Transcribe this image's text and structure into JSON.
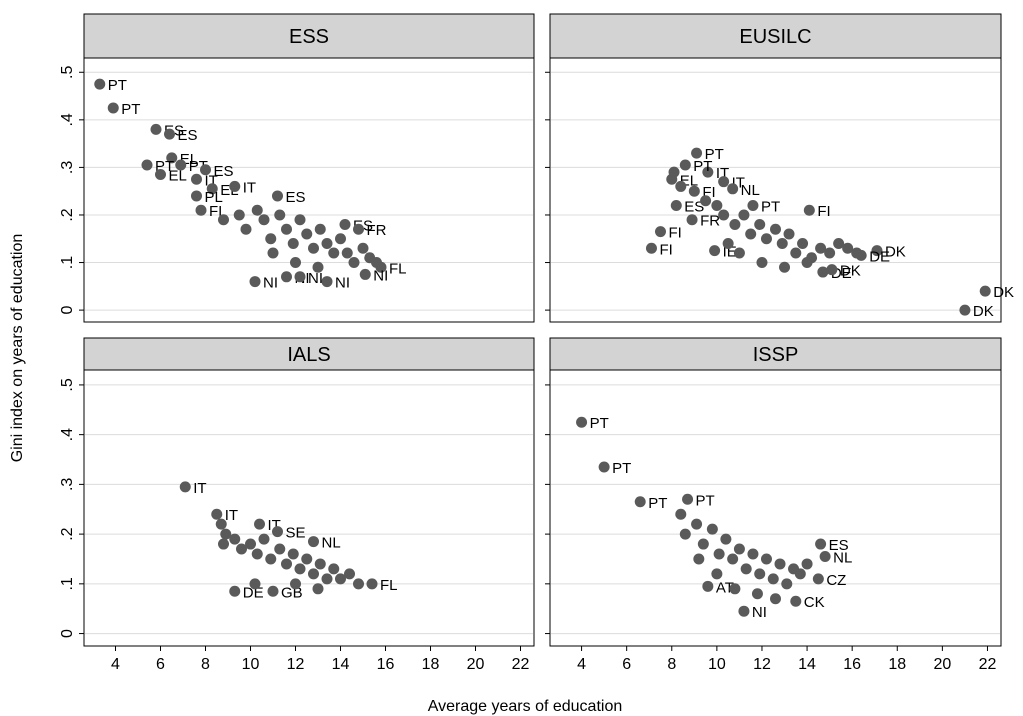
{
  "figure": {
    "xlabel": "Average years of education",
    "ylabel": "Gini index on years of education",
    "point_color": "#5a5a5a",
    "header_color": "#d3d3d3",
    "grid_color": "#dcdcdc"
  },
  "chart_data": [
    {
      "type": "scatter",
      "title": "ESS",
      "xlim": [
        2.6,
        22.6
      ],
      "ylim": [
        -0.025,
        0.53
      ],
      "xticks": [
        4,
        6,
        8,
        10,
        12,
        14,
        16,
        18,
        20,
        22
      ],
      "yticks": [
        0,
        0.1,
        0.2,
        0.3,
        0.4,
        0.5
      ],
      "ytick_labels": [
        "0",
        ".1",
        ".2",
        ".3",
        ".4",
        ".5"
      ],
      "grid": "horizontal",
      "points": [
        {
          "x": 3.3,
          "y": 0.475,
          "label": "PT"
        },
        {
          "x": 3.9,
          "y": 0.425,
          "label": "PT"
        },
        {
          "x": 5.8,
          "y": 0.38,
          "label": "ES"
        },
        {
          "x": 6.4,
          "y": 0.37,
          "label": "ES"
        },
        {
          "x": 6.5,
          "y": 0.32,
          "label": "EL"
        },
        {
          "x": 5.4,
          "y": 0.305,
          "label": "PT"
        },
        {
          "x": 6.9,
          "y": 0.305,
          "label": "PT"
        },
        {
          "x": 6.0,
          "y": 0.285,
          "label": "EL"
        },
        {
          "x": 8.0,
          "y": 0.295,
          "label": "ES"
        },
        {
          "x": 7.6,
          "y": 0.275,
          "label": "IT"
        },
        {
          "x": 8.3,
          "y": 0.255,
          "label": "EL"
        },
        {
          "x": 9.3,
          "y": 0.26,
          "label": "IT"
        },
        {
          "x": 7.6,
          "y": 0.24,
          "label": "PL"
        },
        {
          "x": 11.2,
          "y": 0.24,
          "label": "ES"
        },
        {
          "x": 7.8,
          "y": 0.21,
          "label": "FI"
        },
        {
          "x": 10.2,
          "y": 0.06,
          "label": "NI"
        },
        {
          "x": 11.6,
          "y": 0.07,
          "label": "NI"
        },
        {
          "x": 12.2,
          "y": 0.07,
          "label": "NI"
        },
        {
          "x": 13.4,
          "y": 0.06,
          "label": "NI"
        },
        {
          "x": 14.2,
          "y": 0.18,
          "label": "ES"
        },
        {
          "x": 14.8,
          "y": 0.17,
          "label": "FR"
        },
        {
          "x": 15.8,
          "y": 0.09,
          "label": "FL"
        },
        {
          "x": 15.1,
          "y": 0.075,
          "label": "NI"
        },
        {
          "x": 8.8,
          "y": 0.19
        },
        {
          "x": 9.5,
          "y": 0.2
        },
        {
          "x": 9.8,
          "y": 0.17
        },
        {
          "x": 10.3,
          "y": 0.21
        },
        {
          "x": 10.6,
          "y": 0.19
        },
        {
          "x": 10.9,
          "y": 0.15
        },
        {
          "x": 11.3,
          "y": 0.2
        },
        {
          "x": 11.6,
          "y": 0.17
        },
        {
          "x": 11.9,
          "y": 0.14
        },
        {
          "x": 12.2,
          "y": 0.19
        },
        {
          "x": 12.5,
          "y": 0.16
        },
        {
          "x": 12.8,
          "y": 0.13
        },
        {
          "x": 13.1,
          "y": 0.17
        },
        {
          "x": 13.4,
          "y": 0.14
        },
        {
          "x": 13.7,
          "y": 0.12
        },
        {
          "x": 14.0,
          "y": 0.15
        },
        {
          "x": 14.3,
          "y": 0.12
        },
        {
          "x": 14.6,
          "y": 0.1
        },
        {
          "x": 15.0,
          "y": 0.13
        },
        {
          "x": 15.3,
          "y": 0.11
        },
        {
          "x": 15.6,
          "y": 0.1
        },
        {
          "x": 11.0,
          "y": 0.12
        },
        {
          "x": 12.0,
          "y": 0.1
        },
        {
          "x": 13.0,
          "y": 0.09
        }
      ]
    },
    {
      "type": "scatter",
      "title": "EUSILC",
      "xlim": [
        2.6,
        22.6
      ],
      "ylim": [
        -0.025,
        0.53
      ],
      "xticks": [
        4,
        6,
        8,
        10,
        12,
        14,
        16,
        18,
        20,
        22
      ],
      "yticks": [
        0,
        0.1,
        0.2,
        0.3,
        0.4,
        0.5
      ],
      "ytick_labels": [
        "0",
        ".1",
        ".2",
        ".3",
        ".4",
        ".5"
      ],
      "grid": "horizontal",
      "points": [
        {
          "x": 9.1,
          "y": 0.33,
          "label": "PT"
        },
        {
          "x": 9.6,
          "y": 0.29,
          "label": "IT"
        },
        {
          "x": 8.6,
          "y": 0.305,
          "label": "PT"
        },
        {
          "x": 10.3,
          "y": 0.27,
          "label": "IT"
        },
        {
          "x": 8.0,
          "y": 0.275,
          "label": "EL"
        },
        {
          "x": 10.7,
          "y": 0.255,
          "label": "NL"
        },
        {
          "x": 9.0,
          "y": 0.25,
          "label": "FI"
        },
        {
          "x": 11.6,
          "y": 0.22,
          "label": "PT"
        },
        {
          "x": 8.2,
          "y": 0.22,
          "label": "ES"
        },
        {
          "x": 8.9,
          "y": 0.19,
          "label": "FR"
        },
        {
          "x": 14.1,
          "y": 0.21,
          "label": "FI"
        },
        {
          "x": 7.5,
          "y": 0.165,
          "label": "FI"
        },
        {
          "x": 7.1,
          "y": 0.13,
          "label": "FI"
        },
        {
          "x": 9.9,
          "y": 0.125,
          "label": "IE"
        },
        {
          "x": 17.1,
          "y": 0.125,
          "label": "DK"
        },
        {
          "x": 16.4,
          "y": 0.115,
          "label": "DE"
        },
        {
          "x": 14.7,
          "y": 0.08,
          "label": "DE"
        },
        {
          "x": 15.1,
          "y": 0.085,
          "label": "DK"
        },
        {
          "x": 21.9,
          "y": 0.04,
          "label": "DK"
        },
        {
          "x": 21.0,
          "y": 0.0,
          "label": "DK"
        },
        {
          "x": 8.1,
          "y": 0.29
        },
        {
          "x": 8.4,
          "y": 0.26
        },
        {
          "x": 9.5,
          "y": 0.23
        },
        {
          "x": 10.0,
          "y": 0.22
        },
        {
          "x": 10.3,
          "y": 0.2
        },
        {
          "x": 10.8,
          "y": 0.18
        },
        {
          "x": 11.2,
          "y": 0.2
        },
        {
          "x": 11.5,
          "y": 0.16
        },
        {
          "x": 11.9,
          "y": 0.18
        },
        {
          "x": 12.2,
          "y": 0.15
        },
        {
          "x": 12.6,
          "y": 0.17
        },
        {
          "x": 12.9,
          "y": 0.14
        },
        {
          "x": 13.2,
          "y": 0.16
        },
        {
          "x": 13.5,
          "y": 0.12
        },
        {
          "x": 13.8,
          "y": 0.14
        },
        {
          "x": 14.2,
          "y": 0.11
        },
        {
          "x": 14.6,
          "y": 0.13
        },
        {
          "x": 15.0,
          "y": 0.12
        },
        {
          "x": 15.4,
          "y": 0.14
        },
        {
          "x": 15.8,
          "y": 0.13
        },
        {
          "x": 16.2,
          "y": 0.12
        },
        {
          "x": 10.5,
          "y": 0.14
        },
        {
          "x": 11.0,
          "y": 0.12
        },
        {
          "x": 12.0,
          "y": 0.1
        },
        {
          "x": 13.0,
          "y": 0.09
        },
        {
          "x": 14.0,
          "y": 0.1
        }
      ]
    },
    {
      "type": "scatter",
      "title": "IALS",
      "xlim": [
        2.6,
        22.6
      ],
      "ylim": [
        -0.025,
        0.53
      ],
      "xticks": [
        4,
        6,
        8,
        10,
        12,
        14,
        16,
        18,
        20,
        22
      ],
      "yticks": [
        0,
        0.1,
        0.2,
        0.3,
        0.4,
        0.5
      ],
      "ytick_labels": [
        "0",
        ".1",
        ".2",
        ".3",
        ".4",
        ".5"
      ],
      "grid": "horizontal",
      "points": [
        {
          "x": 7.1,
          "y": 0.295,
          "label": "IT"
        },
        {
          "x": 8.5,
          "y": 0.24,
          "label": "IT"
        },
        {
          "x": 10.4,
          "y": 0.22,
          "label": "IT"
        },
        {
          "x": 11.2,
          "y": 0.205,
          "label": "SE"
        },
        {
          "x": 12.8,
          "y": 0.185,
          "label": "NL"
        },
        {
          "x": 9.3,
          "y": 0.085,
          "label": "DE"
        },
        {
          "x": 11.0,
          "y": 0.085,
          "label": "GB"
        },
        {
          "x": 15.4,
          "y": 0.1,
          "label": "FL"
        },
        {
          "x": 8.7,
          "y": 0.22
        },
        {
          "x": 8.9,
          "y": 0.2
        },
        {
          "x": 9.3,
          "y": 0.19
        },
        {
          "x": 8.8,
          "y": 0.18
        },
        {
          "x": 9.6,
          "y": 0.17
        },
        {
          "x": 10.0,
          "y": 0.18
        },
        {
          "x": 10.3,
          "y": 0.16
        },
        {
          "x": 10.6,
          "y": 0.19
        },
        {
          "x": 10.9,
          "y": 0.15
        },
        {
          "x": 11.3,
          "y": 0.17
        },
        {
          "x": 11.6,
          "y": 0.14
        },
        {
          "x": 11.9,
          "y": 0.16
        },
        {
          "x": 12.2,
          "y": 0.13
        },
        {
          "x": 12.5,
          "y": 0.15
        },
        {
          "x": 12.8,
          "y": 0.12
        },
        {
          "x": 13.1,
          "y": 0.14
        },
        {
          "x": 13.4,
          "y": 0.11
        },
        {
          "x": 13.7,
          "y": 0.13
        },
        {
          "x": 14.0,
          "y": 0.11
        },
        {
          "x": 14.4,
          "y": 0.12
        },
        {
          "x": 14.8,
          "y": 0.1
        },
        {
          "x": 10.2,
          "y": 0.1
        },
        {
          "x": 12.0,
          "y": 0.1
        },
        {
          "x": 13.0,
          "y": 0.09
        }
      ]
    },
    {
      "type": "scatter",
      "title": "ISSP",
      "xlim": [
        2.6,
        22.6
      ],
      "ylim": [
        -0.025,
        0.53
      ],
      "xticks": [
        4,
        6,
        8,
        10,
        12,
        14,
        16,
        18,
        20,
        22
      ],
      "yticks": [
        0,
        0.1,
        0.2,
        0.3,
        0.4,
        0.5
      ],
      "ytick_labels": [
        "0",
        ".1",
        ".2",
        ".3",
        ".4",
        ".5"
      ],
      "grid": "horizontal",
      "points": [
        {
          "x": 4.0,
          "y": 0.425,
          "label": "PT"
        },
        {
          "x": 5.0,
          "y": 0.335,
          "label": "PT"
        },
        {
          "x": 6.6,
          "y": 0.265,
          "label": "PT"
        },
        {
          "x": 8.7,
          "y": 0.27,
          "label": "PT"
        },
        {
          "x": 14.6,
          "y": 0.18,
          "label": "ES"
        },
        {
          "x": 14.8,
          "y": 0.155,
          "label": "NL"
        },
        {
          "x": 9.6,
          "y": 0.095,
          "label": "AT"
        },
        {
          "x": 11.2,
          "y": 0.045,
          "label": "NI"
        },
        {
          "x": 13.5,
          "y": 0.065,
          "label": "CK"
        },
        {
          "x": 14.5,
          "y": 0.11,
          "label": "CZ"
        },
        {
          "x": 8.4,
          "y": 0.24
        },
        {
          "x": 8.6,
          "y": 0.2
        },
        {
          "x": 9.1,
          "y": 0.22
        },
        {
          "x": 9.4,
          "y": 0.18
        },
        {
          "x": 9.8,
          "y": 0.21
        },
        {
          "x": 10.1,
          "y": 0.16
        },
        {
          "x": 10.4,
          "y": 0.19
        },
        {
          "x": 10.7,
          "y": 0.15
        },
        {
          "x": 11.0,
          "y": 0.17
        },
        {
          "x": 11.3,
          "y": 0.13
        },
        {
          "x": 11.6,
          "y": 0.16
        },
        {
          "x": 11.9,
          "y": 0.12
        },
        {
          "x": 12.2,
          "y": 0.15
        },
        {
          "x": 12.5,
          "y": 0.11
        },
        {
          "x": 12.8,
          "y": 0.14
        },
        {
          "x": 13.1,
          "y": 0.1
        },
        {
          "x": 13.4,
          "y": 0.13
        },
        {
          "x": 13.7,
          "y": 0.12
        },
        {
          "x": 14.0,
          "y": 0.14
        },
        {
          "x": 10.0,
          "y": 0.12
        },
        {
          "x": 10.8,
          "y": 0.09
        },
        {
          "x": 11.8,
          "y": 0.08
        },
        {
          "x": 12.6,
          "y": 0.07
        },
        {
          "x": 9.2,
          "y": 0.15
        }
      ]
    }
  ]
}
